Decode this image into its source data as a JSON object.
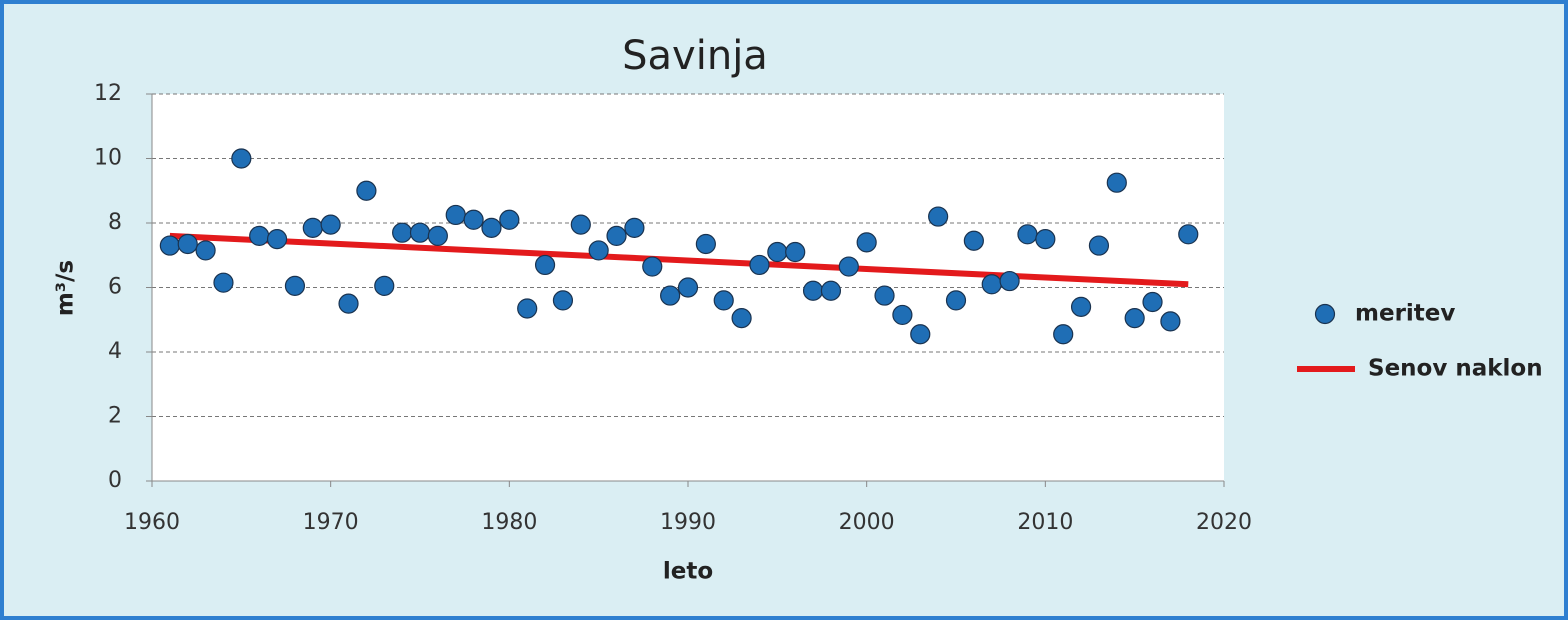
{
  "chart_data": {
    "type": "scatter",
    "title": "Savinja",
    "xlabel": "leto",
    "ylabel": "m³/s",
    "xlim": [
      1960,
      2020
    ],
    "xticks": [
      1960,
      1970,
      1980,
      1990,
      2000,
      2010,
      2020
    ],
    "ylim": [
      0,
      12
    ],
    "yticks": [
      0,
      2,
      4,
      6,
      8,
      10,
      12
    ],
    "grid": true,
    "legend": "right",
    "series": [
      {
        "name": "meritev",
        "type": "scatter",
        "color": "#1f6eb5",
        "x": [
          1961,
          1962,
          1963,
          1964,
          1965,
          1966,
          1967,
          1968,
          1969,
          1970,
          1971,
          1972,
          1973,
          1974,
          1975,
          1976,
          1977,
          1978,
          1979,
          1980,
          1981,
          1982,
          1983,
          1984,
          1985,
          1986,
          1987,
          1988,
          1989,
          1990,
          1991,
          1992,
          1993,
          1994,
          1995,
          1996,
          1997,
          1998,
          1999,
          2000,
          2001,
          2002,
          2003,
          2004,
          2005,
          2006,
          2007,
          2008,
          2009,
          2010,
          2011,
          2012,
          2013,
          2014,
          2015,
          2016,
          2017,
          2018
        ],
        "values": [
          7.3,
          7.35,
          7.15,
          6.15,
          10.0,
          7.6,
          7.5,
          6.05,
          7.85,
          7.95,
          5.5,
          9.0,
          6.05,
          7.7,
          7.7,
          7.6,
          8.25,
          8.1,
          7.85,
          8.1,
          5.35,
          6.7,
          5.6,
          7.95,
          7.15,
          7.6,
          7.85,
          6.65,
          5.75,
          6.0,
          7.35,
          5.6,
          5.05,
          6.7,
          7.1,
          7.1,
          5.9,
          5.9,
          6.65,
          7.4,
          5.75,
          5.15,
          4.55,
          8.2,
          5.6,
          7.45,
          6.1,
          6.2,
          7.65,
          7.5,
          4.55,
          5.4,
          7.3,
          9.25,
          5.05,
          5.55,
          4.95,
          7.65
        ]
      },
      {
        "name": "Senov naklon",
        "type": "line",
        "color": "#e31a1c",
        "x": [
          1961,
          2018
        ],
        "values": [
          7.6,
          6.1
        ]
      }
    ]
  }
}
